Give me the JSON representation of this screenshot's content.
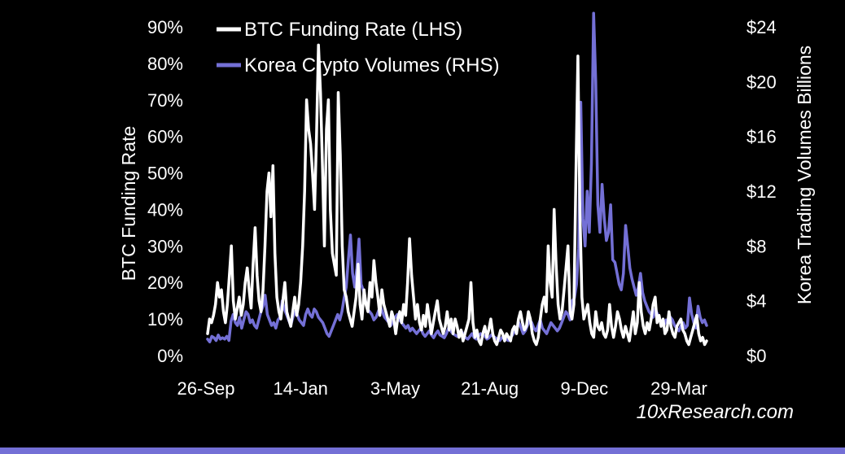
{
  "chart_data": {
    "type": "line",
    "title": "",
    "x_tick_labels": [
      "26-Sep",
      "14-Jan",
      "3-May",
      "21-Aug",
      "9-Dec",
      "29-Mar"
    ],
    "y_left": {
      "label": "BTC Funding Rate",
      "tick_labels": [
        "0%",
        "10%",
        "20%",
        "30%",
        "40%",
        "50%",
        "60%",
        "70%",
        "80%",
        "90%"
      ],
      "range": [
        0,
        90
      ]
    },
    "y_right": {
      "label": "Korea Trading  Volumes Billions",
      "tick_labels": [
        "$0",
        "$4",
        "$8",
        "$12",
        "$16",
        "$20",
        "$24"
      ],
      "range": [
        0,
        24
      ]
    },
    "legend_position": "top-left",
    "series": [
      {
        "name": "BTC Funding Rate (LHS)",
        "axis": "left",
        "unit": "%",
        "color": "#ffffff",
        "values": [
          6,
          10,
          9,
          11,
          14,
          20,
          16,
          18,
          12,
          9,
          14,
          22,
          30,
          15,
          10,
          13,
          16,
          11,
          14,
          20,
          24,
          18,
          13,
          25,
          35,
          22,
          15,
          12,
          18,
          30,
          45,
          50,
          38,
          52,
          28,
          16,
          12,
          10,
          15,
          20,
          12,
          10,
          8,
          12,
          16,
          11,
          14,
          20,
          30,
          45,
          70,
          62,
          58,
          50,
          40,
          60,
          85,
          72,
          52,
          30,
          62,
          70,
          40,
          28,
          25,
          22,
          72,
          55,
          30,
          18,
          16,
          12,
          10,
          8,
          12,
          16,
          25,
          14,
          10,
          18,
          14,
          12,
          20,
          16,
          26,
          20,
          16,
          11,
          18,
          14,
          12,
          10,
          8,
          12,
          10,
          6,
          10,
          12,
          9,
          14,
          11,
          20,
          32,
          22,
          16,
          10,
          14,
          9,
          7,
          11,
          8,
          14,
          10,
          6,
          9,
          12,
          15,
          10,
          8,
          6,
          8,
          12,
          7,
          10,
          6,
          10,
          8,
          5,
          7,
          4,
          6,
          8,
          10,
          20,
          9,
          5,
          7,
          4,
          3,
          6,
          8,
          5,
          7,
          10,
          6,
          4,
          3,
          5,
          7,
          6,
          4,
          6,
          5,
          4,
          7,
          8,
          6,
          10,
          12,
          9,
          7,
          8,
          12,
          10,
          6,
          4,
          3,
          5,
          10,
          14,
          16,
          12,
          30,
          20,
          16,
          40,
          25,
          14,
          10,
          12,
          18,
          24,
          30,
          12,
          10,
          14,
          50,
          82,
          40,
          16,
          10,
          12,
          14,
          9,
          6,
          5,
          12,
          8,
          7,
          9,
          6,
          5,
          7,
          14,
          8,
          5,
          8,
          12,
          10,
          7,
          5,
          8,
          6,
          4,
          8,
          12,
          6,
          9,
          20,
          12,
          8,
          6,
          9,
          7,
          10,
          14,
          16,
          9,
          11,
          8,
          10,
          6,
          7,
          12,
          8,
          6,
          5,
          8,
          9,
          10,
          7,
          6,
          4,
          3,
          5,
          7,
          9,
          11,
          6,
          4,
          5,
          3,
          4
        ]
      },
      {
        "name": "Korea Crypto Volumes (RHS)",
        "axis": "right",
        "unit": "$B",
        "color": "#7470d6",
        "values": [
          1.2,
          1.0,
          1.4,
          1.3,
          1.1,
          1.5,
          1.2,
          1.3,
          1.2,
          1.4,
          1.1,
          2.5,
          3.0,
          2.4,
          2.2,
          2.8,
          2.0,
          2.6,
          3.2,
          3.0,
          2.4,
          2.6,
          2.2,
          2.0,
          2.6,
          3.2,
          3.6,
          4.4,
          3.0,
          2.6,
          2.2,
          2.4,
          2.0,
          2.6,
          2.8,
          4.0,
          3.4,
          3.0,
          2.6,
          2.2,
          2.8,
          3.2,
          3.0,
          2.6,
          2.4,
          2.2,
          3.0,
          3.4,
          3.0,
          2.8,
          3.4,
          3.2,
          2.8,
          2.6,
          2.4,
          2.0,
          1.6,
          1.4,
          1.8,
          2.2,
          2.6,
          3.0,
          2.6,
          3.2,
          4.2,
          5.0,
          7.0,
          8.8,
          6.0,
          5.0,
          6.4,
          8.5,
          5.2,
          4.8,
          4.0,
          3.4,
          3.2,
          3.0,
          2.6,
          2.8,
          3.2,
          3.6,
          3.2,
          2.8,
          2.6,
          2.4,
          2.2,
          2.6,
          2.8,
          3.0,
          2.6,
          2.4,
          2.2,
          2.0,
          2.2,
          1.8,
          2.0,
          1.8,
          1.6,
          1.8,
          2.0,
          1.6,
          1.4,
          1.6,
          1.8,
          1.5,
          1.3,
          1.6,
          1.8,
          1.5,
          1.4,
          1.3,
          1.6,
          2.0,
          1.8,
          1.6,
          1.5,
          1.4,
          1.6,
          1.8,
          1.5,
          1.3,
          1.2,
          1.4,
          1.6,
          1.3,
          1.2,
          1.4,
          1.6,
          1.5,
          1.4,
          1.2,
          1.3,
          1.5,
          1.4,
          1.3,
          1.2,
          1.1,
          1.3,
          1.4,
          1.2,
          1.1,
          1.3,
          1.5,
          1.8,
          2.0,
          2.4,
          2.0,
          1.6,
          1.8,
          2.2,
          2.6,
          2.4,
          2.0,
          1.8,
          2.2,
          2.6,
          2.0,
          1.8,
          1.6,
          2.0,
          2.4,
          2.2,
          2.0,
          1.8,
          2.0,
          2.4,
          2.8,
          3.2,
          3.0,
          2.6,
          4.0,
          4.2,
          5.2,
          7.8,
          18.5,
          10.0,
          8.0,
          12.0,
          9.0,
          14.0,
          25.0,
          20.0,
          11.0,
          9.0,
          12.5,
          10.0,
          8.4,
          9.0,
          11.0,
          7.0,
          6.8,
          6.0,
          5.2,
          4.8,
          6.0,
          9.5,
          8.0,
          6.4,
          5.6,
          5.0,
          4.4,
          5.0,
          6.0,
          4.6,
          4.0,
          3.6,
          3.2,
          3.0,
          2.8,
          3.4,
          3.0,
          2.6,
          2.4,
          2.2,
          2.6,
          2.4,
          2.8,
          2.6,
          2.2,
          2.0,
          1.8,
          2.2,
          2.4,
          2.0,
          2.2,
          4.2,
          3.0,
          2.4,
          2.0,
          3.6,
          2.8,
          2.4,
          2.6,
          2.2
        ]
      }
    ]
  },
  "watermark": "10xResearch.com"
}
